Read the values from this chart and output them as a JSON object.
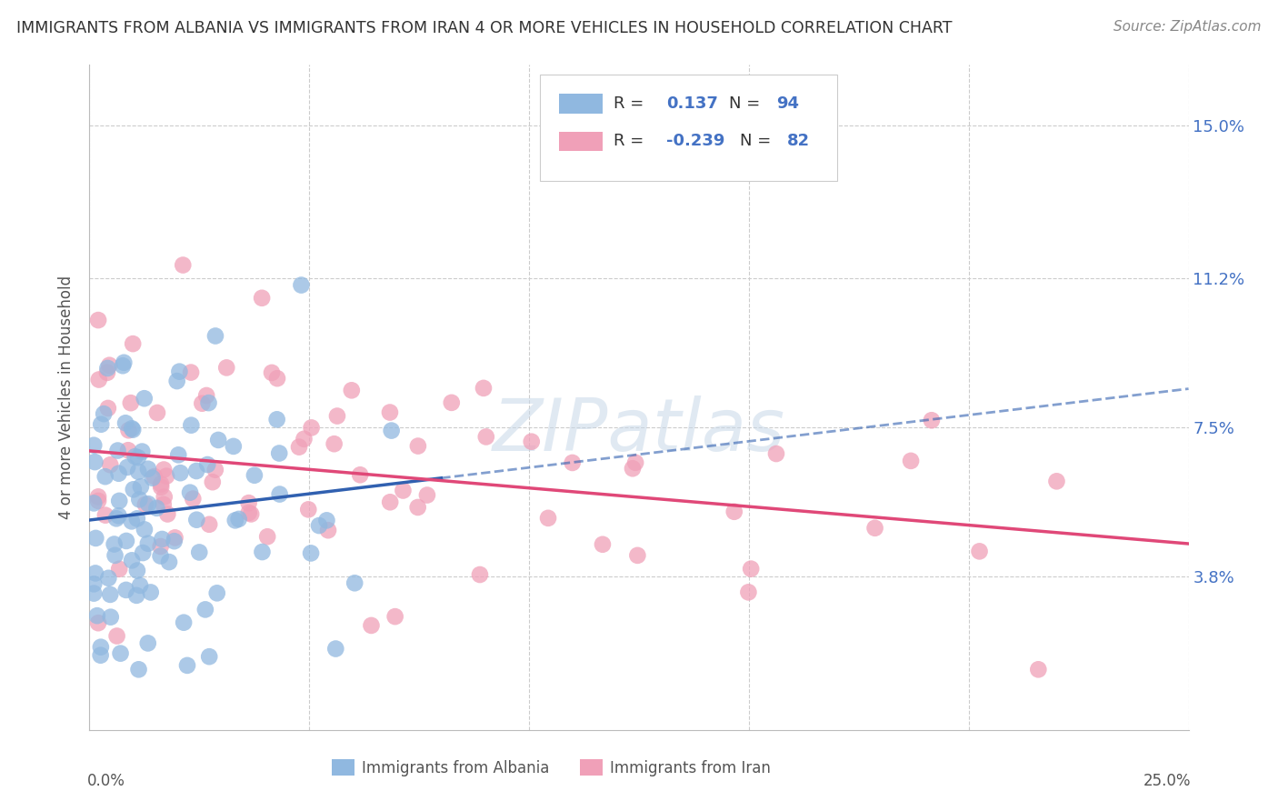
{
  "title": "IMMIGRANTS FROM ALBANIA VS IMMIGRANTS FROM IRAN 4 OR MORE VEHICLES IN HOUSEHOLD CORRELATION CHART",
  "source": "Source: ZipAtlas.com",
  "ylabel": "4 or more Vehicles in Household",
  "ytick_labels": [
    "3.8%",
    "7.5%",
    "11.2%",
    "15.0%"
  ],
  "ytick_values": [
    0.038,
    0.075,
    0.112,
    0.15
  ],
  "xlim": [
    0.0,
    0.25
  ],
  "ylim": [
    0.0,
    0.165
  ],
  "albania_R": 0.137,
  "albania_N": 94,
  "iran_R": -0.239,
  "iran_N": 82,
  "albania_color": "#90b8e0",
  "iran_color": "#f0a0b8",
  "albania_line_color": "#3060b0",
  "iran_line_color": "#e04878",
  "legend_text_color": "#4472c4",
  "watermark_color": "#c8d8e8",
  "background_color": "#ffffff",
  "grid_color": "#cccccc",
  "title_color": "#333333",
  "source_color": "#888888",
  "ylabel_color": "#555555"
}
